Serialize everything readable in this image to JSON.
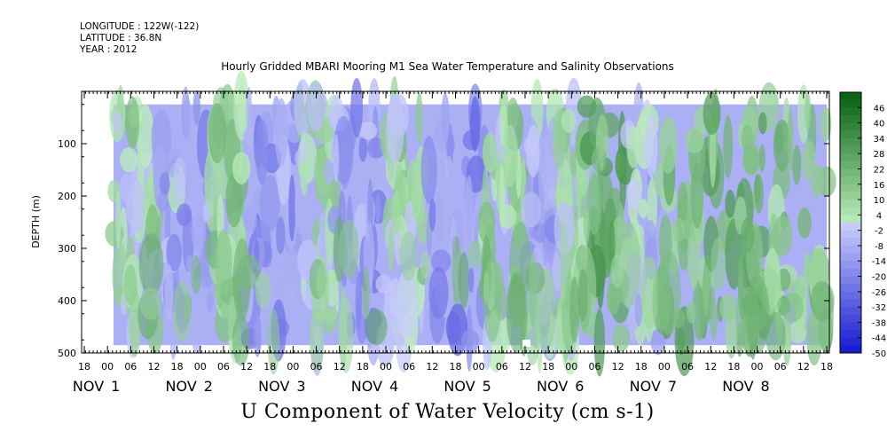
{
  "header": {
    "lines": [
      "LONGITUDE : 122W(-122)",
      "LATITUDE : 36.8N",
      "YEAR : 2012"
    ]
  },
  "chart_data": {
    "type": "heatmap",
    "title": "Hourly Gridded MBARI Mooring M1 Sea Water Temperature and Salinity Observations",
    "xlabel": "U Component of Water Velocity (cm s-1)",
    "ylabel": "DEPTH (m)",
    "ylim": [
      500,
      0
    ],
    "y_ticks": [
      100,
      200,
      300,
      400,
      500
    ],
    "x_hour_ticks": [
      "18",
      "00",
      "06",
      "12",
      "18",
      "00",
      "06",
      "12",
      "18",
      "00",
      "06",
      "12",
      "18",
      "00",
      "06",
      "12",
      "18",
      "00",
      "06",
      "12",
      "18",
      "00",
      "06",
      "12",
      "18",
      "00",
      "06",
      "12",
      "18",
      "00",
      "06",
      "12",
      "18"
    ],
    "x_day_labels": [
      {
        "month": "NOV",
        "day": "1"
      },
      {
        "month": "NOV",
        "day": "2"
      },
      {
        "month": "NOV",
        "day": "3"
      },
      {
        "month": "NOV",
        "day": "4"
      },
      {
        "month": "NOV",
        "day": "5"
      },
      {
        "month": "NOV",
        "day": "6"
      },
      {
        "month": "NOV",
        "day": "7"
      },
      {
        "month": "NOV",
        "day": "8"
      }
    ],
    "colorbar": {
      "labels": [
        "46",
        "40",
        "34",
        "28",
        "22",
        "16",
        "10",
        "4",
        "-2",
        "-8",
        "-14",
        "-20",
        "-26",
        "-32",
        "-38",
        "-44",
        "-50"
      ],
      "range": [
        -50,
        52
      ]
    },
    "data_depth_range_m": [
      25,
      485
    ],
    "bands": [
      {
        "x": [
          0,
          0.06
        ],
        "value": 6
      },
      {
        "x": [
          0.06,
          0.14
        ],
        "value": -10
      },
      {
        "x": [
          0.14,
          0.18
        ],
        "value": 12
      },
      {
        "x": [
          0.18,
          0.26
        ],
        "value": -14
      },
      {
        "x": [
          0.26,
          0.31
        ],
        "value": 4
      },
      {
        "x": [
          0.31,
          0.38
        ],
        "value": -12
      },
      {
        "x": [
          0.38,
          0.44
        ],
        "value": 8
      },
      {
        "x": [
          0.44,
          0.52
        ],
        "value": -16
      },
      {
        "x": [
          0.52,
          0.58
        ],
        "value": 10
      },
      {
        "x": [
          0.58,
          0.62
        ],
        "value": -8
      },
      {
        "x": [
          0.62,
          0.66
        ],
        "value": 6
      },
      {
        "x": [
          0.66,
          0.72
        ],
        "value": 22
      },
      {
        "x": [
          0.72,
          0.77
        ],
        "value": -6
      },
      {
        "x": [
          0.77,
          0.86
        ],
        "value": 18
      },
      {
        "x": [
          0.86,
          0.92
        ],
        "value": 20
      },
      {
        "x": [
          0.92,
          1.0
        ],
        "value": 14
      }
    ]
  }
}
